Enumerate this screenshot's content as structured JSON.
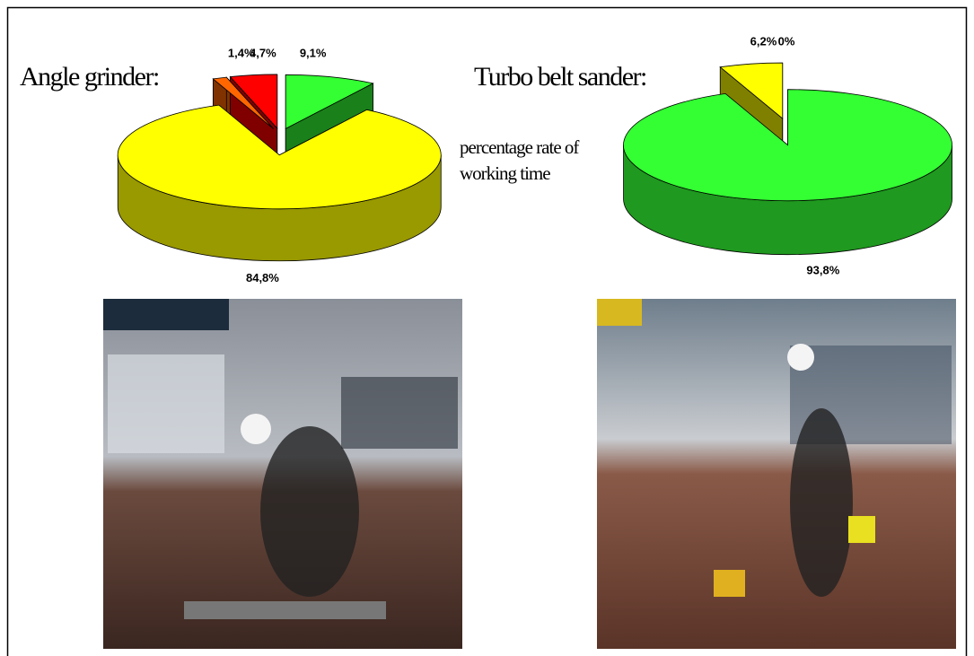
{
  "note": "percentage rate of working time",
  "chart_data": [
    {
      "type": "pie",
      "title": "Angle grinder:",
      "values": [
        9.1,
        84.8,
        1.4,
        4.7
      ],
      "value_labels": [
        "9,1%",
        "84,8%",
        "1,4%",
        "4,7%"
      ],
      "colors": [
        "#33ff33",
        "#ffff00",
        "#ff6600",
        "#ff0000"
      ]
    },
    {
      "type": "pie",
      "title": "Turbo belt sander:",
      "values": [
        93.8,
        6.2,
        0
      ],
      "value_labels": [
        "93,8%",
        "6,2%",
        "0%"
      ],
      "colors": [
        "#33ff33",
        "#ffff00",
        "#cccccc"
      ]
    }
  ]
}
